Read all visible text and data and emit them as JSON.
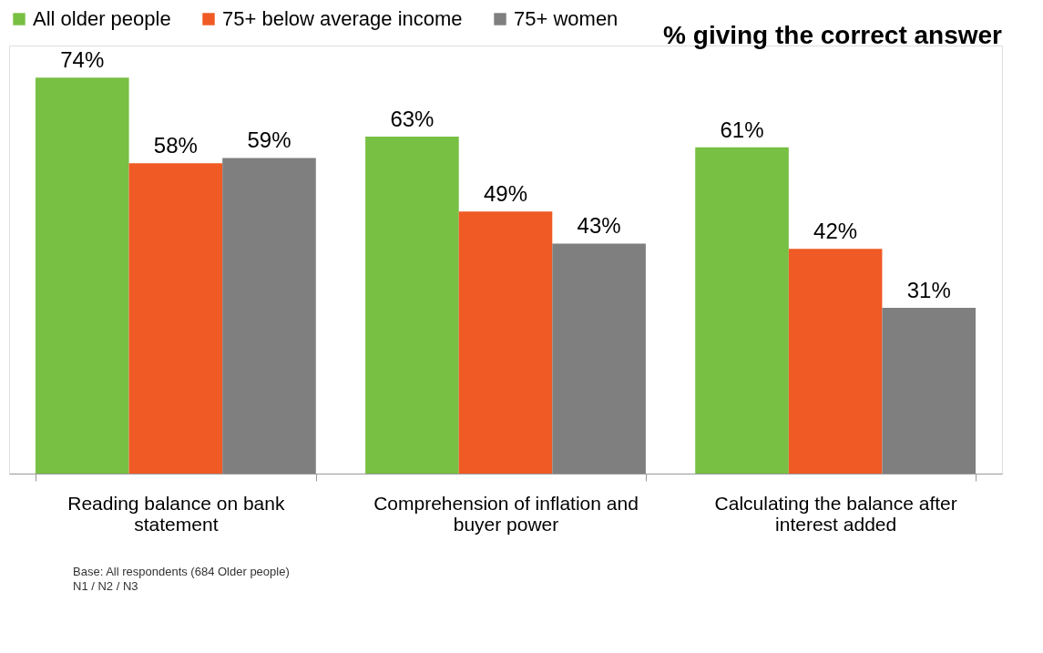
{
  "chart_data": {
    "type": "bar",
    "title": "% giving the correct answer",
    "categories": [
      "Reading balance on bank statement",
      "Comprehension of inflation and buyer power",
      "Calculating the balance after interest added"
    ],
    "series": [
      {
        "name": "All older people",
        "color": "#77c043",
        "values": [
          74,
          63,
          61
        ],
        "value_labels": [
          "74%",
          "63%",
          "61%"
        ]
      },
      {
        "name": "75+ below average income",
        "color": "#f05a24",
        "values": [
          58,
          49,
          42
        ],
        "value_labels": [
          "58%",
          "49%",
          "42%"
        ]
      },
      {
        "name": "75+ women",
        "color": "#7f7f7f",
        "values": [
          59,
          43,
          31
        ],
        "value_labels": [
          "59%",
          "43%",
          "31%"
        ]
      }
    ],
    "tick_labels": "x",
    "legend": "top",
    "grid": false,
    "annotations": [
      "Base: All respondents (684 Older people)",
      "N1 / N2 / N3"
    ]
  }
}
